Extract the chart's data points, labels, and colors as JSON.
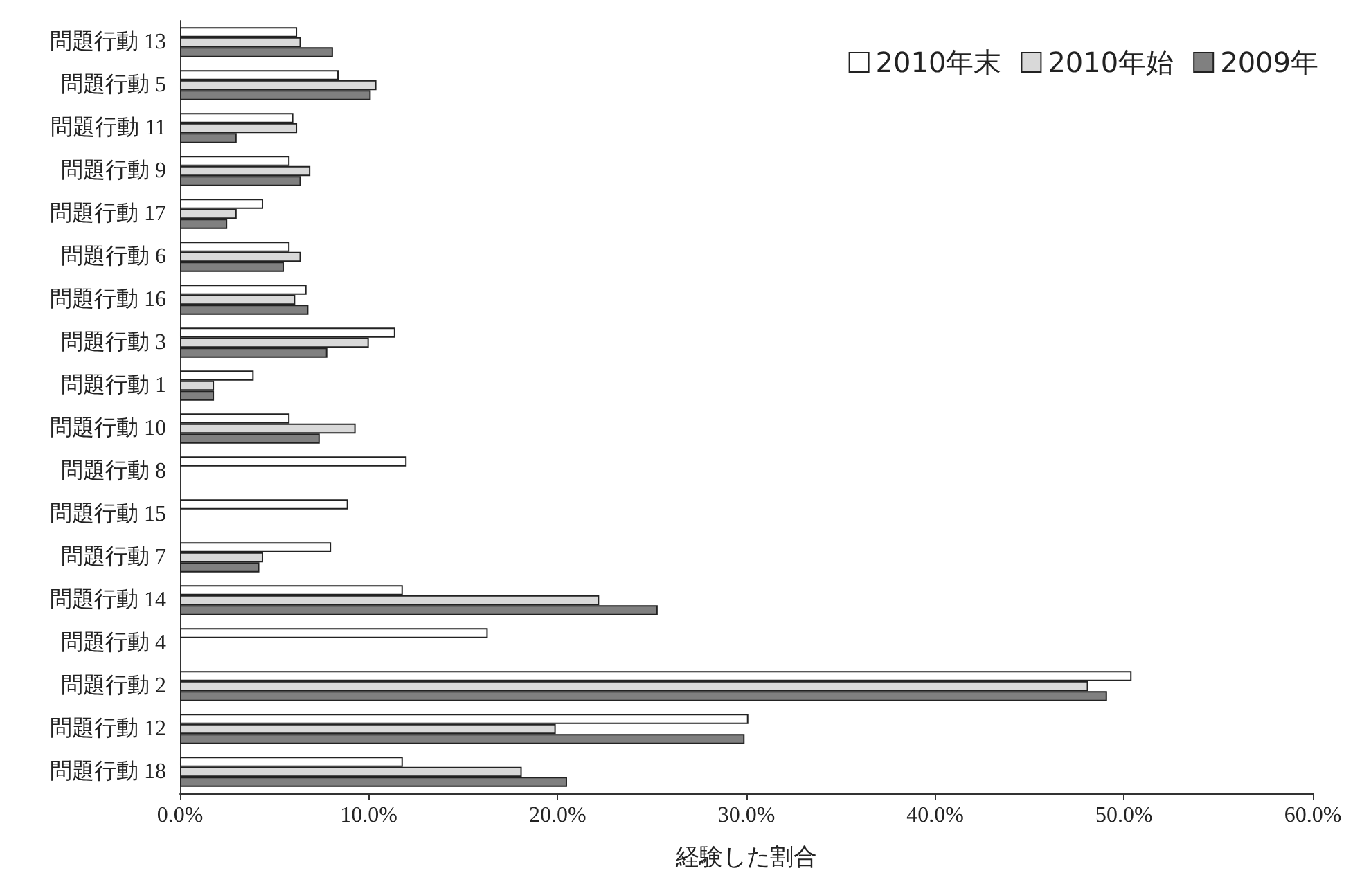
{
  "chart_data": {
    "type": "bar",
    "orientation": "horizontal",
    "xlabel": "経験した割合",
    "categories": [
      "問題行動 13",
      "問題行動 5",
      "問題行動 11",
      "問題行動 9",
      "問題行動 17",
      "問題行動 6",
      "問題行動 16",
      "問題行動 3",
      "問題行動 1",
      "問題行動 10",
      "問題行動 8",
      "問題行動 15",
      "問題行動 7",
      "問題行動 14",
      "問題行動 4",
      "問題行動 2",
      "問題行動 12",
      "問題行動 18"
    ],
    "series": [
      {
        "name": "2010年末",
        "color": "#ffffff",
        "values": [
          6.2,
          8.4,
          6.0,
          5.8,
          4.4,
          5.8,
          6.7,
          11.4,
          3.9,
          5.8,
          12.0,
          8.9,
          8.0,
          11.8,
          16.3,
          50.4,
          30.1,
          11.8
        ]
      },
      {
        "name": "2010年始",
        "color": "#d9d9d9",
        "values": [
          6.4,
          10.4,
          6.2,
          6.9,
          3.0,
          6.4,
          6.1,
          10.0,
          1.8,
          9.3,
          null,
          null,
          4.4,
          22.2,
          null,
          48.1,
          19.9,
          18.1
        ]
      },
      {
        "name": "2009年",
        "color": "#808080",
        "values": [
          8.1,
          10.1,
          3.0,
          6.4,
          2.5,
          5.5,
          6.8,
          7.8,
          1.8,
          7.4,
          null,
          null,
          4.2,
          25.3,
          null,
          49.1,
          29.9,
          20.5
        ]
      }
    ],
    "xlim": [
      0,
      60
    ],
    "xticks": [
      {
        "value": 0,
        "label": "0.0%"
      },
      {
        "value": 10,
        "label": "10.0%"
      },
      {
        "value": 20,
        "label": "20.0%"
      },
      {
        "value": 30,
        "label": "30.0%"
      },
      {
        "value": 40,
        "label": "40.0%"
      },
      {
        "value": 50,
        "label": "50.0%"
      },
      {
        "value": 60,
        "label": "60.0%"
      }
    ],
    "grid": false,
    "legend": "top right"
  }
}
